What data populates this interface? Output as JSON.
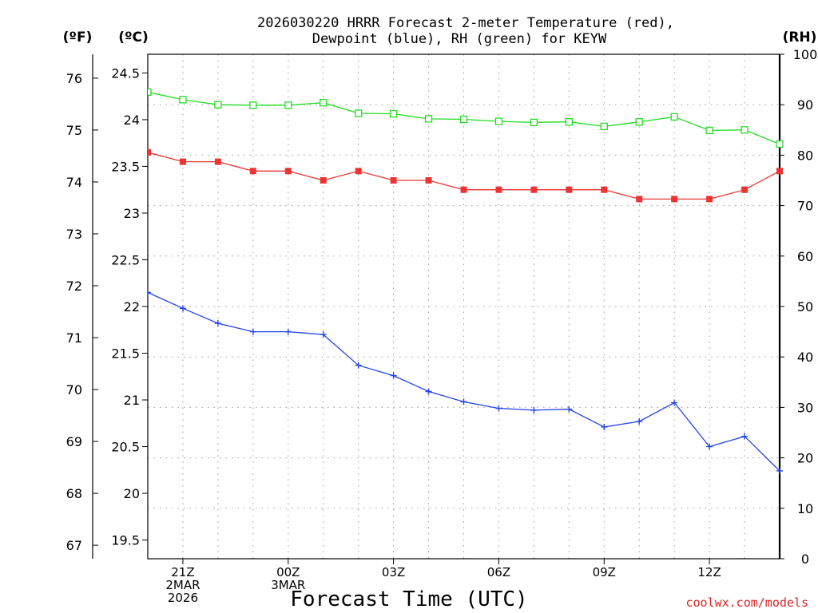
{
  "title_line1": "2026030220 HRRR Forecast 2-meter Temperature (red),",
  "title_line2": "Dewpoint (blue), RH (green) for KEYW",
  "unit_f": "(ºF)",
  "unit_c": "(ºC)",
  "unit_rh": "(RH)",
  "xlabel": "Forecast Time (UTC)",
  "credit": "coolwx.com/models",
  "colors": {
    "temp": "#ee3333",
    "dewpoint": "#2244ee",
    "rh": "#22dd22",
    "credit": "#dd2222"
  },
  "chart_data": {
    "type": "line",
    "title": "2026030220 HRRR Forecast 2-meter Temperature (red), Dewpoint (blue), RH (green) for KEYW",
    "xlabel": "Forecast Time (UTC)",
    "x_hours": [
      20,
      21,
      22,
      23,
      24,
      25,
      26,
      27,
      28,
      29,
      30,
      31,
      32,
      33,
      34,
      35,
      36,
      37,
      38
    ],
    "xlim": [
      20,
      38
    ],
    "x_ticks": [
      {
        "hour": 21,
        "lines": [
          "21Z",
          "2MAR",
          "2026"
        ]
      },
      {
        "hour": 24,
        "lines": [
          "00Z",
          "3MAR"
        ]
      },
      {
        "hour": 27,
        "lines": [
          "03Z"
        ]
      },
      {
        "hour": 30,
        "lines": [
          "06Z"
        ]
      },
      {
        "hour": 33,
        "lines": [
          "09Z"
        ]
      },
      {
        "hour": 36,
        "lines": [
          "12Z"
        ]
      }
    ],
    "y_celsius": {
      "label": "(ºC)",
      "range": [
        19.3,
        24.7
      ],
      "ticks": [
        "19.5",
        "20",
        "20.5",
        "21",
        "21.5",
        "22",
        "22.5",
        "23",
        "23.5",
        "24",
        "24.5"
      ]
    },
    "y_fahrenheit": {
      "label": "(ºF)",
      "ticks": [
        "67",
        "68",
        "69",
        "70",
        "71",
        "72",
        "73",
        "74",
        "75",
        "76"
      ]
    },
    "y_rh": {
      "label": "(RH)",
      "range": [
        0,
        100
      ],
      "ticks": [
        "0",
        "10",
        "20",
        "30",
        "40",
        "50",
        "60",
        "70",
        "80",
        "90",
        "100"
      ]
    },
    "series": [
      {
        "name": "Temperature",
        "axis": "celsius",
        "color": "#ee3333",
        "marker": "filled-square",
        "values": [
          23.65,
          23.55,
          23.55,
          23.45,
          23.45,
          23.35,
          23.45,
          23.35,
          23.35,
          23.25,
          23.25,
          23.25,
          23.25,
          23.25,
          23.15,
          23.15,
          23.15,
          23.25,
          23.45
        ]
      },
      {
        "name": "Dewpoint",
        "axis": "celsius",
        "color": "#2244ee",
        "marker": "plus",
        "values": [
          22.15,
          21.98,
          21.82,
          21.73,
          21.73,
          21.7,
          21.37,
          21.26,
          21.09,
          20.98,
          20.91,
          20.89,
          20.9,
          20.71,
          20.77,
          20.97,
          20.5,
          20.61,
          20.24
        ]
      },
      {
        "name": "RH",
        "axis": "rh",
        "color": "#22dd22",
        "marker": "open-square",
        "values": [
          92.5,
          91.0,
          90.0,
          89.9,
          89.9,
          90.4,
          88.3,
          88.2,
          87.2,
          87.1,
          86.7,
          86.5,
          86.6,
          85.7,
          86.6,
          87.6,
          84.9,
          85.0,
          82.2
        ]
      }
    ]
  }
}
